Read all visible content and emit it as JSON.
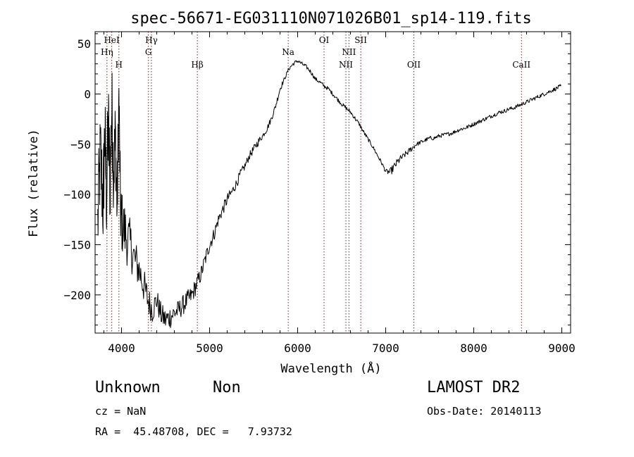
{
  "chart_data": {
    "type": "line",
    "title": "spec-56671-EG031110N071026B01_sp14-119.fits",
    "xlabel": "Wavelength (Å)",
    "ylabel": "Flux (relative)",
    "xlim": [
      3700,
      9100
    ],
    "ylim": [
      -238,
      62
    ],
    "xticks": [
      4000,
      5000,
      6000,
      7000,
      8000,
      9000
    ],
    "yticks": [
      -200,
      -150,
      -100,
      -50,
      0,
      50
    ],
    "grid": false,
    "series": [
      {
        "x": [
          3730,
          3760,
          3790,
          3810,
          3830,
          3850,
          3870,
          3890,
          3910,
          3930,
          3950,
          3970,
          3990,
          4010,
          4050,
          4100,
          4150,
          4200,
          4250,
          4300,
          4350,
          4400,
          4450,
          4500,
          4550,
          4600,
          4650,
          4700,
          4750,
          4800,
          4850,
          4900,
          4950,
          5000,
          5050,
          5100,
          5150,
          5200,
          5250,
          5300,
          5350,
          5400,
          5450,
          5500,
          5550,
          5600,
          5650,
          5700,
          5750,
          5800,
          5850,
          5900,
          5950,
          6000,
          6050,
          6100,
          6150,
          6200,
          6250,
          6300,
          6350,
          6400,
          6450,
          6500,
          6550,
          6600,
          6650,
          6700,
          6750,
          6800,
          6850,
          6900,
          6950,
          7000,
          7050,
          7100,
          7150,
          7200,
          7250,
          7300,
          7350,
          7400,
          7450,
          7500,
          7550,
          7600,
          7650,
          7700,
          7750,
          7800,
          7850,
          7900,
          7950,
          8000,
          8050,
          8100,
          8150,
          8200,
          8250,
          8300,
          8350,
          8400,
          8450,
          8500,
          8550,
          8600,
          8650,
          8700,
          8750,
          8800,
          8850,
          8900,
          8950,
          8990
        ],
        "y": [
          -130,
          -60,
          -110,
          -40,
          -100,
          -30,
          -90,
          -10,
          -80,
          -40,
          -115,
          -5,
          -120,
          -130,
          -140,
          -150,
          -165,
          -175,
          -190,
          -205,
          -215,
          -205,
          -220,
          -225,
          -222,
          -218,
          -215,
          -210,
          -205,
          -200,
          -190,
          -180,
          -165,
          -150,
          -140,
          -125,
          -115,
          -105,
          -98,
          -90,
          -80,
          -72,
          -62,
          -55,
          -48,
          -42,
          -35,
          -25,
          -12,
          5,
          15,
          25,
          30,
          33,
          30,
          27,
          22,
          15,
          12,
          8,
          5,
          0,
          -5,
          -10,
          -14,
          -18,
          -24,
          -30,
          -38,
          -45,
          -52,
          -60,
          -68,
          -77,
          -78,
          -72,
          -66,
          -62,
          -58,
          -54,
          -50,
          -48,
          -46,
          -44,
          -44,
          -42,
          -41,
          -40,
          -39,
          -37,
          -35,
          -34,
          -32,
          -30,
          -28,
          -26,
          -24,
          -22,
          -20,
          -18,
          -17,
          -15,
          -14,
          -12,
          -10,
          -8,
          -6,
          -4,
          -2,
          0,
          2,
          4,
          6,
          8
        ],
        "noise_amplitude": [
          50,
          50,
          50,
          50,
          50,
          50,
          48,
          45,
          42,
          40,
          38,
          36,
          34,
          32,
          30,
          25,
          22,
          20,
          18,
          16,
          14,
          12,
          12,
          12,
          12,
          11,
          10,
          10,
          10,
          9,
          9,
          8,
          8,
          7,
          7,
          6,
          6,
          6,
          5,
          5,
          5,
          4,
          4,
          4,
          4,
          3,
          3,
          3,
          3,
          3,
          2,
          2,
          2,
          2,
          2,
          2,
          2,
          2,
          2,
          2,
          2,
          2,
          2,
          2,
          2,
          2,
          2,
          2,
          2,
          2,
          2,
          2,
          2,
          2,
          4,
          4,
          4,
          3,
          3,
          3,
          2,
          2,
          2,
          2,
          2,
          2,
          2,
          2,
          2,
          2,
          2,
          2,
          2,
          2,
          2,
          2,
          2,
          2,
          2,
          2,
          2,
          2,
          2,
          2,
          2,
          2,
          2,
          2,
          2,
          2,
          2,
          2,
          2,
          2
        ],
        "color": "#000000"
      }
    ],
    "spectral_lines": [
      {
        "label": "Hη",
        "x": 3835,
        "row": 2
      },
      {
        "label": "HeI",
        "x": 3889,
        "row": 1
      },
      {
        "label": "H",
        "x": 3970,
        "row": 3
      },
      {
        "label": "Hγ",
        "x": 4340,
        "row": 1
      },
      {
        "label": "G",
        "x": 4305,
        "row": 2
      },
      {
        "label": "Hβ",
        "x": 4861,
        "row": 3
      },
      {
        "label": "Na",
        "x": 5893,
        "row": 2
      },
      {
        "label": "OI",
        "x": 6300,
        "row": 1
      },
      {
        "label": "NII",
        "x": 6583,
        "row": 2
      },
      {
        "label": "NII",
        "x": 6548,
        "row": 3
      },
      {
        "label": "OII",
        "x": 7320,
        "row": 3
      },
      {
        "label": "SII",
        "x": 6717,
        "row": 1
      },
      {
        "label": "CaII",
        "x": 8542,
        "row": 3
      }
    ],
    "line_color": "#8b1a1a"
  },
  "info": {
    "object_class": "Unknown",
    "subclass": "Non",
    "survey": "LAMOST DR2",
    "cz": "cz = NaN",
    "obs_date": "Obs-Date: 20140113",
    "coords": "RA =  45.48708, DEC =   7.93732"
  }
}
